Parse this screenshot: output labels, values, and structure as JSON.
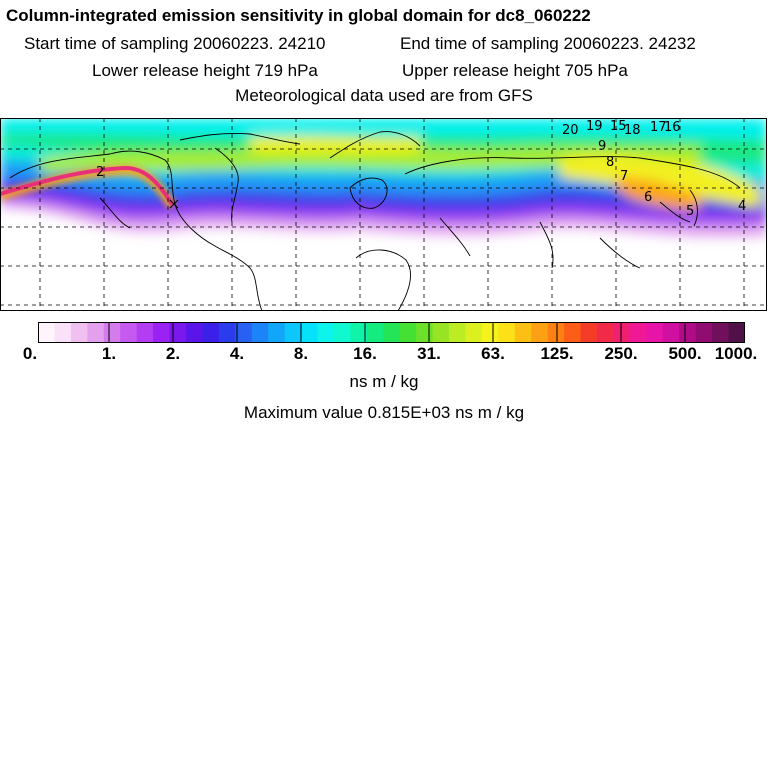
{
  "header": {
    "title": "Column-integrated emission sensitivity in global domain for dc8_060222",
    "start_time": "Start time of sampling 20060223. 24210",
    "end_time": "End time of sampling 20060223. 24232",
    "lower_height": "Lower release height  719 hPa",
    "upper_height": "Upper release height  705 hPa",
    "met_data": "Meteorological data used are from GFS"
  },
  "map": {
    "day_labels": [
      "20",
      "19",
      "15",
      "18",
      "17",
      "16",
      "9",
      "8",
      "7",
      "6",
      "5",
      "4",
      "2"
    ],
    "trajectory_color": "#e8307a",
    "coast_color": "#000000"
  },
  "colorbar": {
    "tick_labels": [
      "0.",
      "1.",
      "2.",
      "4.",
      "8.",
      "16.",
      "31.",
      "63.",
      "125.",
      "250.",
      "500.",
      "1000."
    ],
    "colors": [
      "#fff4fc",
      "#fae0f8",
      "#f0c0f0",
      "#e3a0ee",
      "#d47cec",
      "#c65af0",
      "#b43cf2",
      "#9a22f2",
      "#7a18ee",
      "#5a16ea",
      "#3a20e8",
      "#2a3cec",
      "#2860f2",
      "#1c84f8",
      "#12a6f8",
      "#0cc6fc",
      "#06e2fc",
      "#0cf4ec",
      "#10f8d0",
      "#10f4aa",
      "#14ec80",
      "#24e458",
      "#44e034",
      "#6ce02a",
      "#98e424",
      "#bcec24",
      "#dcf020",
      "#f4f41c",
      "#fce018",
      "#fcc014",
      "#fca014",
      "#fc8014",
      "#fc5e18",
      "#f43c28",
      "#f02a48",
      "#f02070",
      "#f01894",
      "#e814a8",
      "#d010a0",
      "#b00c88",
      "#900c70",
      "#70105c",
      "#501048"
    ],
    "units": "ns m / kg",
    "maximum": "Maximum value  0.815E+03 ns m / kg"
  }
}
